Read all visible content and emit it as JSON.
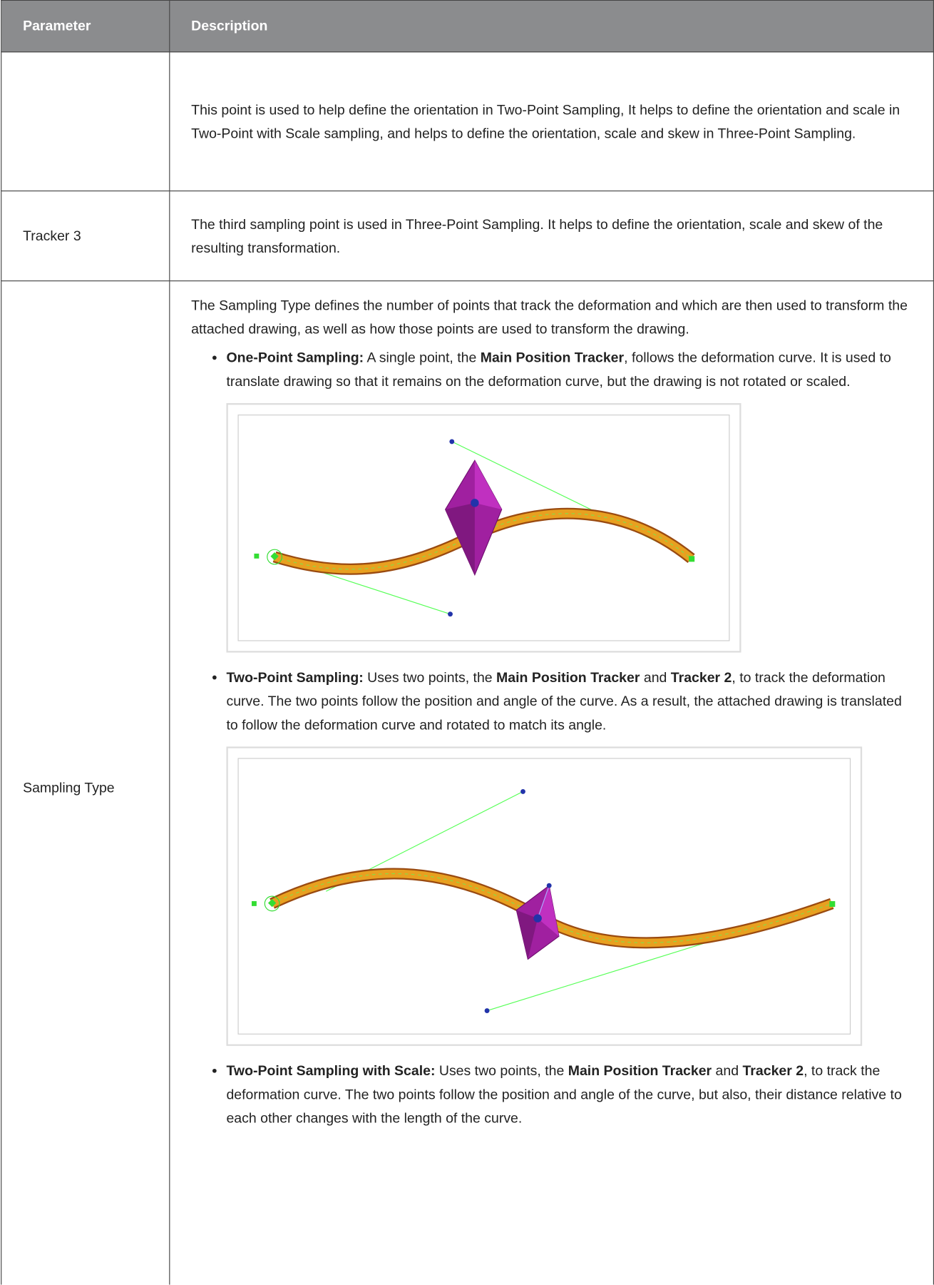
{
  "table": {
    "headers": [
      "Parameter",
      "Description"
    ],
    "rows": [
      {
        "description": "This point is used to help define the orientation in Two-Point Sampling, It helps to define the orientation and scale in Two-Point with Scale sampling, and helps to define the orientation, scale and skew in Three-Point Sampling."
      },
      {
        "parameter": "Tracker 3",
        "description": "The third sampling point is used in Three-Point Sampling. It helps to define the orientation, scale and skew of the resulting transformation."
      },
      {
        "parameter": "Sampling Type",
        "description": "The Sampling Type defines the number of points that track the deformation and which are then used to transform the attached drawing, as well as how those points are used to transform the drawing.",
        "bullets": [
          {
            "parts": [
              {
                "b": "One-Point Sampling:"
              },
              {
                "t": " A single point, the "
              },
              {
                "b": "Main Position Tracker"
              },
              {
                "t": ", follows the deformation curve. It is used to translate drawing so that it remains on the deformation curve, but the drawing is not rotated or scaled."
              }
            ]
          },
          {
            "parts": [
              {
                "b": "Two-Point Sampling:"
              },
              {
                "t": " Uses two points, the "
              },
              {
                "b": "Main Position Tracker"
              },
              {
                "t": " and "
              },
              {
                "b": "Tracker 2"
              },
              {
                "t": ", to track the deformation curve. The two points follow the position and angle of the curve. As a result, the attached drawing is translated to follow the deformation curve and rotated to match its angle."
              }
            ]
          },
          {
            "parts": [
              {
                "b": "Two-Point Sampling with Scale:"
              },
              {
                "t": " Uses two points, the "
              },
              {
                "b": "Main Position Tracker"
              },
              {
                "t": " and "
              },
              {
                "b": "Tracker 2"
              },
              {
                "t": ", to track the deformation curve. The two points follow the position and angle of the curve, but also, their distance relative to each other changes with the length of the curve."
              }
            ]
          }
        ]
      }
    ]
  }
}
